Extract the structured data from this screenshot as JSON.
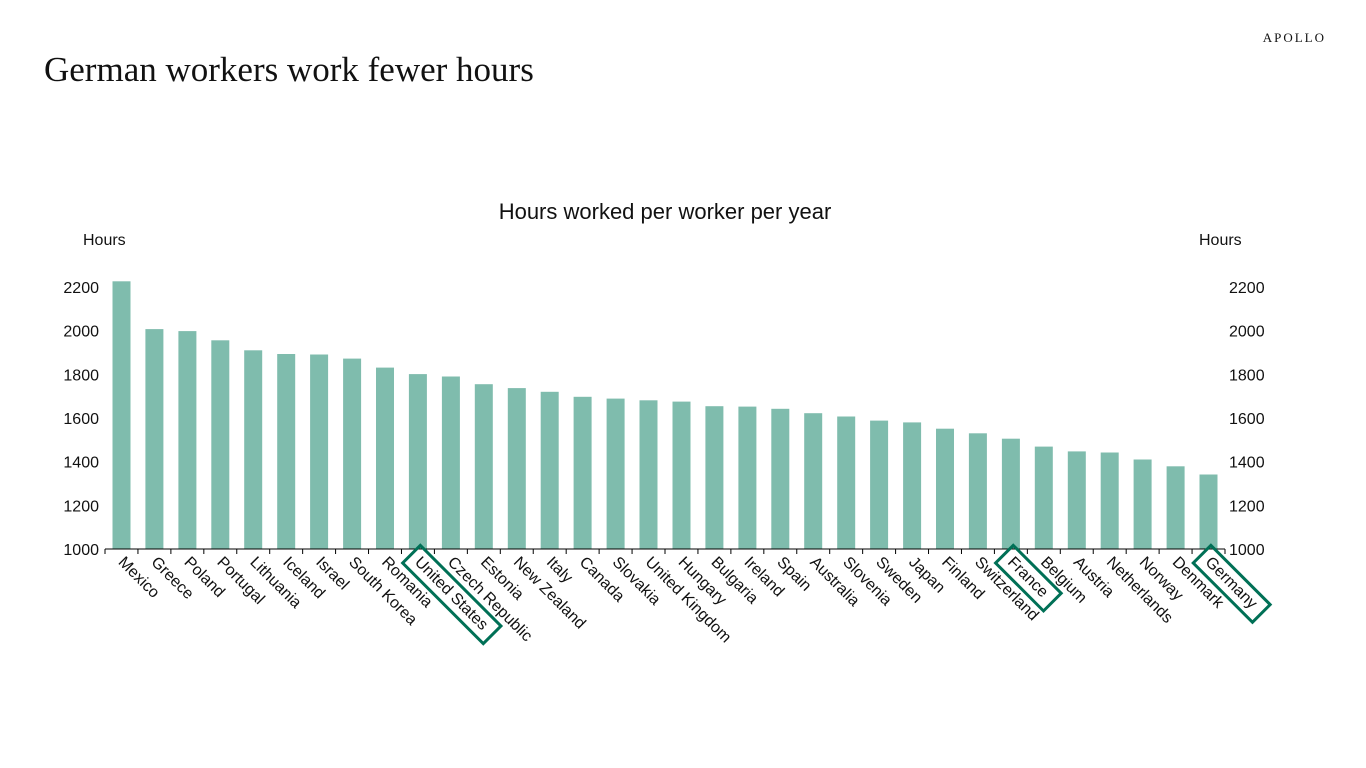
{
  "page": {
    "title": "German workers work fewer hours",
    "brand": "APOLLO"
  },
  "colors": {
    "bar": "#7fbcad",
    "highlight": "#007056",
    "axis": "#000000"
  },
  "chart_data": {
    "type": "bar",
    "title": "Hours worked per worker per year",
    "ylabel_left": "Hours",
    "ylabel_right": "Hours",
    "ylim": [
      1000,
      2300
    ],
    "yticks": [
      1000,
      1200,
      1400,
      1600,
      1800,
      2000,
      2200
    ],
    "grid": false,
    "categories": [
      "Mexico",
      "Greece",
      "Poland",
      "Portugal",
      "Lithuania",
      "Iceland",
      "Israel",
      "South Korea",
      "Romania",
      "United States",
      "Czech Republic",
      "Estonia",
      "New Zealand",
      "Italy",
      "Canada",
      "Slovakia",
      "United Kingdom",
      "Hungary",
      "Bulgaria",
      "Ireland",
      "Spain",
      "Australia",
      "Slovenia",
      "Sweden",
      "Japan",
      "Finland",
      "Switzerland",
      "France",
      "Belgium",
      "Austria",
      "Netherlands",
      "Norway",
      "Denmark",
      "Germany"
    ],
    "values": [
      2226,
      2007,
      1998,
      1956,
      1910,
      1893,
      1891,
      1872,
      1831,
      1801,
      1790,
      1755,
      1737,
      1720,
      1697,
      1689,
      1681,
      1675,
      1654,
      1652,
      1642,
      1622,
      1607,
      1588,
      1580,
      1551,
      1530,
      1505,
      1469,
      1447,
      1442,
      1410,
      1379,
      1341
    ],
    "highlighted": [
      "United States",
      "France",
      "Germany"
    ]
  }
}
